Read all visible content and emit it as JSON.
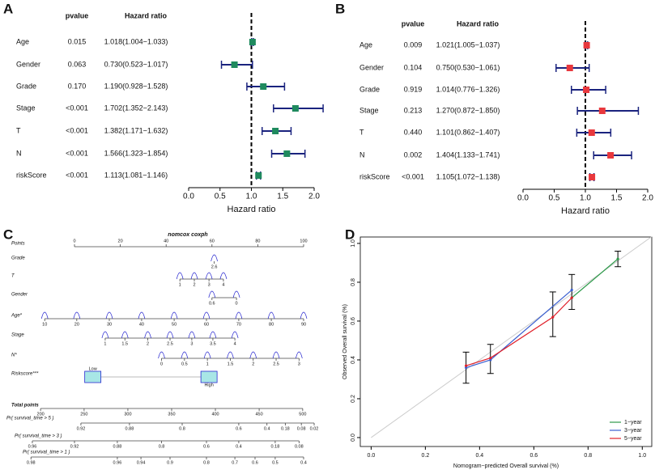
{
  "chart_data": [
    {
      "type": "forest",
      "panel_label": "A",
      "headers": [
        "pvalue",
        "Hazard ratio"
      ],
      "categories": [
        "Age",
        "Gender",
        "Grade",
        "Stage",
        "T",
        "N",
        "riskScore"
      ],
      "pvalues": [
        "0.015",
        "0.063",
        "0.170",
        "<0.001",
        "<0.001",
        "<0.001",
        "<0.001"
      ],
      "values": [
        1.018,
        0.73,
        1.19,
        1.702,
        1.382,
        1.566,
        1.113
      ],
      "lower": [
        1.004,
        0.523,
        0.928,
        1.352,
        1.171,
        1.323,
        1.081
      ],
      "upper": [
        1.033,
        1.017,
        1.528,
        2.143,
        1.632,
        1.854,
        1.146
      ],
      "value_labels": [
        "1.018(1.004−1.033)",
        "0.730(0.523−1.017)",
        "1.190(0.928−1.528)",
        "1.702(1.352−2.143)",
        "1.382(1.171−1.632)",
        "1.566(1.323−1.854)",
        "1.113(1.081−1.146)"
      ],
      "xlim": [
        0,
        2
      ],
      "xticks": [
        {
          "value": 0,
          "label": "0.0"
        },
        {
          "value": 0.5,
          "label": "0.5"
        },
        {
          "value": 1,
          "label": "1.0"
        },
        {
          "value": 1.5,
          "label": "1.5"
        },
        {
          "value": 2,
          "label": "2.0"
        }
      ],
      "xlabel": "Hazard ratio",
      "reference": 1,
      "color": "#1f8a5e",
      "ci_color": "#1a237e"
    },
    {
      "type": "forest",
      "panel_label": "B",
      "headers": [
        "pvalue",
        "Hazard ratio"
      ],
      "categories": [
        "Age",
        "Gender",
        "Grade",
        "Stage",
        "T",
        "N",
        "riskScore"
      ],
      "pvalues": [
        "0.009",
        "0.104",
        "0.919",
        "0.213",
        "0.440",
        "0.002",
        "<0.001"
      ],
      "values": [
        1.021,
        0.75,
        1.014,
        1.27,
        1.101,
        1.404,
        1.105
      ],
      "lower": [
        1.005,
        0.53,
        0.776,
        0.872,
        0.862,
        1.133,
        1.072
      ],
      "upper": [
        1.037,
        1.061,
        1.326,
        1.85,
        1.407,
        1.741,
        1.138
      ],
      "value_labels": [
        "1.021(1.005−1.037)",
        "0.750(0.530−1.061)",
        "1.014(0.776−1.326)",
        "1.270(0.872−1.850)",
        "1.101(0.862−1.407)",
        "1.404(1.133−1.741)",
        "1.105(1.072−1.138)"
      ],
      "xlim": [
        0,
        2
      ],
      "xticks": [
        {
          "value": 0,
          "label": "0.0"
        },
        {
          "value": 0.5,
          "label": "0.5"
        },
        {
          "value": 1,
          "label": "1.0"
        },
        {
          "value": 1.5,
          "label": "1.5"
        },
        {
          "value": 2,
          "label": "2.0"
        }
      ],
      "xlabel": "Hazard ratio",
      "reference": 1,
      "color": "#e8383d",
      "ci_color": "#1a237e"
    },
    {
      "type": "nomogram",
      "panel_label": "C",
      "title": "nomcox coxph",
      "color": "#2a2ad0",
      "rows": [
        {
          "name": "Points",
          "ticks": [
            0,
            20,
            40,
            60,
            80,
            100
          ],
          "at": [
            0,
            20,
            40,
            60,
            80,
            100
          ]
        },
        {
          "name": "Grade",
          "ticks": [
            2.6
          ],
          "at": [
            61
          ]
        },
        {
          "name": "T",
          "ticks": [
            1,
            2,
            3,
            4
          ],
          "at": [
            46,
            52.3,
            58.7,
            65
          ]
        },
        {
          "name": "Gender",
          "ticks": [
            0.6,
            0
          ],
          "at": [
            60,
            70.7
          ]
        },
        {
          "name": "Age*",
          "ticks": [
            10,
            20,
            30,
            40,
            50,
            60,
            70,
            80,
            90
          ],
          "at": [
            -13,
            1,
            15.2,
            29.3,
            43.5,
            57.6,
            71.7,
            85.9,
            100
          ]
        },
        {
          "name": "Stage",
          "ticks": [
            1,
            1.5,
            2,
            2.5,
            3,
            3.5,
            4
          ],
          "at": [
            13.4,
            22,
            32,
            41.7,
            51.2,
            60.4,
            70
          ]
        },
        {
          "name": "N*",
          "ticks": [
            0,
            0.5,
            1,
            1.5,
            2,
            2.5,
            3
          ],
          "at": [
            38,
            48,
            58,
            68,
            78,
            88,
            98
          ]
        },
        {
          "name": "Riskscore***",
          "ticks": [
            "Low",
            "High"
          ],
          "at": [
            8,
            58.7
          ]
        },
        {
          "name": "Total points",
          "ticks": [
            200,
            250,
            300,
            350,
            400,
            450,
            500
          ],
          "at": [
            -14.8,
            4.2,
            23.3,
            42.4,
            61.5,
            80.6,
            99.6
          ]
        },
        {
          "name": "Pr( survival_time > 5 )",
          "ticks": [
            0.92,
            0.88,
            0.8,
            0.6,
            0.4,
            0.18,
            0.08,
            0.02
          ],
          "at": [
            2.8,
            24,
            47,
            71.7,
            84,
            92,
            99,
            104.6
          ]
        },
        {
          "name": "Pr( survival_time > 3 )",
          "ticks": [
            0.96,
            0.92,
            0.88,
            0.8,
            0.6,
            0.4,
            0.18,
            0.08
          ],
          "at": [
            -18.4,
            0,
            18.7,
            38,
            57.6,
            71.7,
            87.6,
            98
          ]
        },
        {
          "name": "Pr( survival_time > 1 )",
          "ticks": [
            0.98,
            0.96,
            0.94,
            0.9,
            0.8,
            0.7,
            0.6,
            0.5,
            0.4
          ],
          "at": [
            -19,
            18.7,
            29,
            41.7,
            57.6,
            70,
            78.8,
            87.6,
            100
          ]
        }
      ]
    },
    {
      "type": "calibration",
      "panel_label": "D",
      "xlabel": "Nomogram−predicted Overall survival (%)",
      "ylabel": "Observed Overall survival (%)",
      "xlim": [
        -0.04,
        1.035
      ],
      "ylim": [
        -0.046,
        1.033
      ],
      "xticks": [
        {
          "value": 0,
          "label": "0.0"
        },
        {
          "value": 0.2,
          "label": "0.2"
        },
        {
          "value": 0.4,
          "label": "0.4"
        },
        {
          "value": 0.6,
          "label": "0.6"
        },
        {
          "value": 0.8,
          "label": "0.8"
        },
        {
          "value": 1,
          "label": "1.0"
        }
      ],
      "yticks": [
        {
          "value": 0,
          "label": "0.0"
        },
        {
          "value": 0.2,
          "label": "0.2"
        },
        {
          "value": 0.4,
          "label": "0.4"
        },
        {
          "value": 0.6,
          "label": "0.6"
        },
        {
          "value": 0.8,
          "label": "0.8"
        },
        {
          "value": 1,
          "label": "1.0"
        }
      ],
      "series": [
        {
          "name": "1−year",
          "color": "#2e9a4a",
          "x": [
            0.74,
            0.91
          ],
          "values": [
            0.72,
            0.92
          ]
        },
        {
          "name": "3−year",
          "color": "#3a5fd0",
          "x": [
            0.35,
            0.44,
            0.74
          ],
          "values": [
            0.36,
            0.4,
            0.76
          ]
        },
        {
          "name": "5−year",
          "color": "#e0202a",
          "x": [
            0.35,
            0.44,
            0.67,
            0.74
          ],
          "values": [
            0.37,
            0.41,
            0.62,
            0.72
          ]
        }
      ],
      "error_bars": {
        "x": [
          0.35,
          0.44,
          0.67,
          0.74,
          0.91
        ],
        "lower": [
          0.28,
          0.33,
          0.52,
          0.66,
          0.88
        ],
        "upper": [
          0.44,
          0.48,
          0.75,
          0.84,
          0.96
        ]
      },
      "reference_line": true,
      "legend": "lower right"
    }
  ]
}
